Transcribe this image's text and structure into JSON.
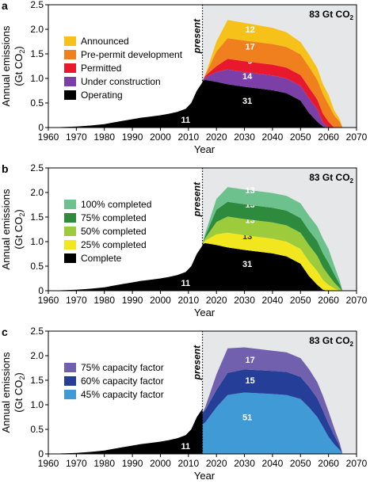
{
  "chart_data": [
    {
      "panel_label": "a",
      "type": "area",
      "stacked": true,
      "total_label": "83 Gt CO",
      "total_label_sub": "2",
      "present_label": "present",
      "present_year": 2015,
      "xlabel": "Year",
      "ylabel": "Annual emissions",
      "ylabel2": "(Gt CO",
      "ylabel2_sub": "2",
      "ylabel2_tail": ")",
      "xlim": [
        1960,
        2070
      ],
      "ylim": [
        0,
        2.5
      ],
      "xticks": [
        1960,
        1970,
        1980,
        1990,
        2000,
        2010,
        2020,
        2030,
        2040,
        2050,
        2060,
        2070
      ],
      "yticks": [
        0,
        0.5,
        1.0,
        1.5,
        2.0,
        2.5
      ],
      "ytick_labels": [
        "0",
        "0.5",
        "1.0",
        "1.5",
        "2.0",
        "2.5"
      ],
      "legend_placement": "left",
      "historical": {
        "name": "",
        "color": "#000000",
        "label": "11",
        "x": [
          1960,
          1965,
          1970,
          1975,
          1980,
          1983,
          1986,
          1990,
          1993,
          1996,
          2000,
          2003,
          2006,
          2009,
          2011,
          2013,
          2015
        ],
        "y": [
          0.0,
          0.01,
          0.02,
          0.04,
          0.07,
          0.1,
          0.13,
          0.17,
          0.2,
          0.22,
          0.25,
          0.28,
          0.32,
          0.38,
          0.5,
          0.75,
          0.92
        ]
      },
      "future_x": [
        2015,
        2016,
        2020,
        2024,
        2030,
        2040,
        2045,
        2050,
        2053,
        2056,
        2058,
        2060,
        2062,
        2064,
        2065
      ],
      "series": [
        {
          "name": "Operating",
          "color": "#000000",
          "label": "31",
          "label_color": "#ffffff",
          "label_at": [
            2031,
            0.55
          ],
          "values": [
            0.95,
            0.97,
            0.93,
            0.88,
            0.83,
            0.76,
            0.7,
            0.55,
            0.3,
            0.12,
            0.02,
            0.0,
            0.0,
            0.0,
            0.0
          ]
        },
        {
          "name": "Under construction",
          "color": "#7b3fa7",
          "label": "14",
          "label_color": "#ffffff",
          "label_at": [
            2031,
            1.05
          ],
          "values": [
            0.0,
            0.05,
            0.2,
            0.3,
            0.3,
            0.3,
            0.3,
            0.3,
            0.3,
            0.25,
            0.08,
            0.0,
            0.0,
            0.0,
            0.0
          ]
        },
        {
          "name": "Permitted",
          "color": "#e8192c",
          "label": "9",
          "label_color": "#ffffff",
          "label_at": [
            2032,
            1.36
          ],
          "values": [
            0.0,
            0.03,
            0.12,
            0.22,
            0.22,
            0.22,
            0.22,
            0.22,
            0.22,
            0.2,
            0.18,
            0.12,
            0.0,
            0.0,
            0.0
          ]
        },
        {
          "name": "Pre-permit development",
          "color": "#f07f1e",
          "label": "17",
          "label_color": "#ffffff",
          "label_at": [
            2032,
            1.65
          ],
          "values": [
            0.0,
            0.02,
            0.3,
            0.42,
            0.42,
            0.42,
            0.42,
            0.42,
            0.42,
            0.4,
            0.4,
            0.35,
            0.25,
            0.12,
            0.0
          ]
        },
        {
          "name": "Announced",
          "color": "#f6c21a",
          "label": "12",
          "label_color": "#ffffff",
          "label_at": [
            2032,
            2.0
          ],
          "values": [
            0.0,
            0.0,
            0.2,
            0.37,
            0.36,
            0.33,
            0.3,
            0.25,
            0.25,
            0.24,
            0.2,
            0.2,
            0.1,
            0.05,
            0.0
          ]
        }
      ]
    },
    {
      "panel_label": "b",
      "type": "area",
      "stacked": true,
      "total_label": "83 Gt CO",
      "total_label_sub": "2",
      "present_label": "present",
      "present_year": 2015,
      "xlabel": "Year",
      "ylabel": "Annual emissions",
      "ylabel2": "(Gt CO",
      "ylabel2_sub": "2",
      "ylabel2_tail": ")",
      "xlim": [
        1960,
        2070
      ],
      "ylim": [
        0,
        2.5
      ],
      "xticks": [
        1960,
        1970,
        1980,
        1990,
        2000,
        2010,
        2020,
        2030,
        2040,
        2050,
        2060,
        2070
      ],
      "yticks": [
        0,
        0.5,
        1.0,
        1.5,
        2.0,
        2.5
      ],
      "ytick_labels": [
        "0",
        "0.5",
        "1.0",
        "1.5",
        "2.0",
        "2.5"
      ],
      "legend_placement": "left",
      "historical": {
        "name": "",
        "color": "#000000",
        "label": "11",
        "x": [
          1960,
          1965,
          1970,
          1975,
          1980,
          1983,
          1986,
          1990,
          1993,
          1996,
          2000,
          2003,
          2006,
          2009,
          2011,
          2013,
          2015
        ],
        "y": [
          0.0,
          0.01,
          0.02,
          0.04,
          0.07,
          0.1,
          0.13,
          0.17,
          0.2,
          0.22,
          0.25,
          0.28,
          0.32,
          0.38,
          0.5,
          0.75,
          0.92
        ]
      },
      "future_x": [
        2015,
        2016,
        2020,
        2024,
        2030,
        2040,
        2045,
        2050,
        2053,
        2056,
        2058,
        2060,
        2062,
        2064,
        2065
      ],
      "series": [
        {
          "name": "Complete",
          "color": "#000000",
          "label": "31",
          "label_color": "#ffffff",
          "label_at": [
            2031,
            0.55
          ],
          "values": [
            0.95,
            0.97,
            0.93,
            0.88,
            0.83,
            0.76,
            0.7,
            0.55,
            0.3,
            0.12,
            0.02,
            0.0,
            0.0,
            0.0,
            0.0
          ]
        },
        {
          "name": "25% completed",
          "color": "#f2e61e",
          "label": "13",
          "label_color": "#333333",
          "label_at": [
            2031,
            1.11
          ],
          "values": [
            0.0,
            0.05,
            0.22,
            0.3,
            0.3,
            0.3,
            0.3,
            0.3,
            0.3,
            0.28,
            0.2,
            0.12,
            0.05,
            0.0,
            0.0
          ]
        },
        {
          "name": "50% completed",
          "color": "#9ccb3c",
          "label": "13",
          "label_color": "#ffffff",
          "label_at": [
            2032,
            1.44
          ],
          "values": [
            0.0,
            0.05,
            0.25,
            0.33,
            0.33,
            0.33,
            0.33,
            0.33,
            0.33,
            0.31,
            0.26,
            0.2,
            0.12,
            0.05,
            0.0
          ]
        },
        {
          "name": "75% completed",
          "color": "#2e8b3e",
          "label": "13",
          "label_color": "#ffffff",
          "label_at": [
            2032,
            1.76
          ],
          "values": [
            0.0,
            0.05,
            0.25,
            0.3,
            0.3,
            0.3,
            0.3,
            0.3,
            0.3,
            0.3,
            0.28,
            0.25,
            0.17,
            0.08,
            0.0
          ]
        },
        {
          "name": "100% completed",
          "color": "#6cc18d",
          "label": "13",
          "label_color": "#ffffff",
          "label_at": [
            2032,
            2.05
          ],
          "values": [
            0.0,
            0.05,
            0.22,
            0.3,
            0.3,
            0.3,
            0.3,
            0.3,
            0.3,
            0.3,
            0.3,
            0.28,
            0.18,
            0.08,
            0.0
          ]
        }
      ]
    },
    {
      "panel_label": "c",
      "type": "area",
      "stacked": true,
      "total_label": "83 Gt CO",
      "total_label_sub": "2",
      "present_label": "present",
      "present_year": 2015,
      "xlabel": "Year",
      "ylabel": "Annual emissions",
      "ylabel2": "(Gt CO",
      "ylabel2_sub": "2",
      "ylabel2_tail": ")",
      "xlim": [
        1960,
        2070
      ],
      "ylim": [
        0,
        2.5
      ],
      "xticks": [
        1960,
        1970,
        1980,
        1990,
        2000,
        2010,
        2020,
        2030,
        2040,
        2050,
        2060,
        2070
      ],
      "yticks": [
        0,
        0.5,
        1.0,
        1.5,
        2.0,
        2.5
      ],
      "ytick_labels": [
        "0",
        "0.5",
        "1.0",
        "1.5",
        "2.0",
        "2.5"
      ],
      "legend_placement": "left",
      "historical": {
        "name": "",
        "color": "#000000",
        "label": "11",
        "x": [
          1960,
          1965,
          1970,
          1975,
          1980,
          1983,
          1986,
          1990,
          1993,
          1996,
          2000,
          2003,
          2006,
          2009,
          2011,
          2013,
          2015
        ],
        "y": [
          0.0,
          0.01,
          0.02,
          0.04,
          0.07,
          0.1,
          0.13,
          0.17,
          0.2,
          0.22,
          0.25,
          0.28,
          0.32,
          0.38,
          0.5,
          0.75,
          0.92
        ]
      },
      "future_x": [
        2015,
        2016,
        2020,
        2024,
        2030,
        2040,
        2045,
        2050,
        2053,
        2056,
        2058,
        2060,
        2062,
        2064,
        2065
      ],
      "series": [
        {
          "name": "45% capacity factor",
          "color": "#3f9ad6",
          "label": "51",
          "label_color": "#ffffff",
          "label_at": [
            2031,
            0.75
          ],
          "values": [
            0.6,
            0.64,
            0.95,
            1.2,
            1.25,
            1.22,
            1.2,
            1.12,
            0.95,
            0.75,
            0.55,
            0.35,
            0.2,
            0.08,
            0.0
          ]
        },
        {
          "name": "60% capacity factor",
          "color": "#253f99",
          "label": "15",
          "label_color": "#ffffff",
          "label_at": [
            2032,
            1.5
          ],
          "values": [
            0.23,
            0.25,
            0.35,
            0.45,
            0.47,
            0.47,
            0.47,
            0.45,
            0.42,
            0.38,
            0.33,
            0.27,
            0.18,
            0.08,
            0.0
          ]
        },
        {
          "name": "75% capacity factor",
          "color": "#7060ae",
          "label": "17",
          "label_color": "#ffffff",
          "label_at": [
            2032,
            1.92
          ],
          "values": [
            0.0,
            0.06,
            0.32,
            0.5,
            0.45,
            0.41,
            0.4,
            0.38,
            0.36,
            0.33,
            0.3,
            0.25,
            0.15,
            0.06,
            0.0
          ]
        }
      ]
    }
  ]
}
